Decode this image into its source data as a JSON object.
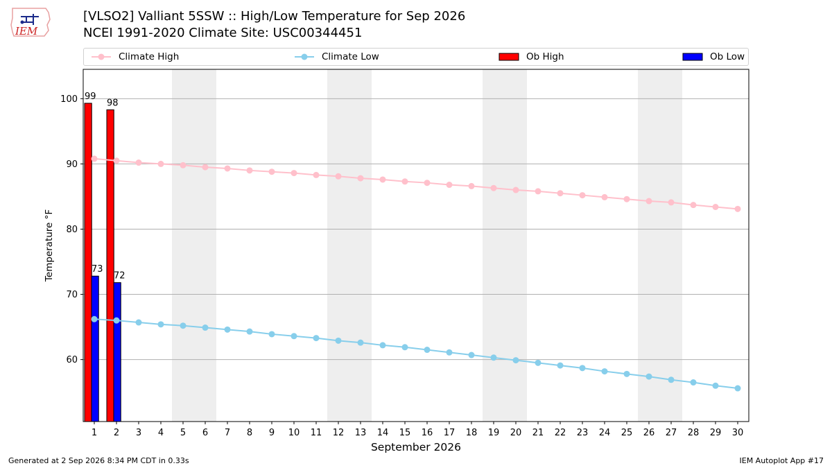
{
  "header": {
    "title_line1": "[VLSO2] Valliant 5SSW :: High/Low Temperature for Sep 2026",
    "title_line2": "NCEI 1991-2020 Climate Site: USC00344451",
    "logo_text": "IEM"
  },
  "legend": {
    "items": [
      {
        "label": "Climate High",
        "kind": "line",
        "color": "#ffc0cb"
      },
      {
        "label": "Climate Low",
        "kind": "line",
        "color": "#87ceeb"
      },
      {
        "label": "Ob High",
        "kind": "bar",
        "color": "#ff0000"
      },
      {
        "label": "Ob Low",
        "kind": "bar",
        "color": "#0000ff"
      }
    ]
  },
  "footer": {
    "left": "Generated at 2 Sep 2026 8:34 PM CDT in 0.33s",
    "right": "IEM Autoplot App #17"
  },
  "chart_data": {
    "type": "bar",
    "xlabel": "September 2026",
    "ylabel": "Temperature °F",
    "xlim": [
      0.5,
      30.5
    ],
    "ylim": [
      50.5,
      104.5
    ],
    "yticks": [
      60,
      70,
      80,
      90,
      100
    ],
    "x": [
      1,
      2,
      3,
      4,
      5,
      6,
      7,
      8,
      9,
      10,
      11,
      12,
      13,
      14,
      15,
      16,
      17,
      18,
      19,
      20,
      21,
      22,
      23,
      24,
      25,
      26,
      27,
      28,
      29,
      30
    ],
    "weekend_shading": [
      [
        5,
        6
      ],
      [
        12,
        13
      ],
      [
        19,
        20
      ],
      [
        26,
        27
      ]
    ],
    "grid": true,
    "legend_position": "top",
    "series": [
      {
        "name": "Climate High",
        "type": "line",
        "color": "#ffc0cb",
        "values": [
          90.8,
          90.5,
          90.2,
          90.0,
          89.8,
          89.5,
          89.3,
          89.0,
          88.8,
          88.6,
          88.3,
          88.1,
          87.8,
          87.6,
          87.3,
          87.1,
          86.8,
          86.6,
          86.3,
          86.0,
          85.8,
          85.5,
          85.2,
          84.9,
          84.6,
          84.3,
          84.1,
          83.7,
          83.4,
          83.1
        ]
      },
      {
        "name": "Climate Low",
        "type": "line",
        "color": "#87ceeb",
        "values": [
          66.2,
          66.0,
          65.7,
          65.4,
          65.2,
          64.9,
          64.6,
          64.3,
          63.9,
          63.6,
          63.3,
          62.9,
          62.6,
          62.2,
          61.9,
          61.5,
          61.1,
          60.7,
          60.3,
          59.9,
          59.5,
          59.1,
          58.7,
          58.2,
          57.8,
          57.4,
          56.9,
          56.5,
          56.0,
          55.6
        ]
      },
      {
        "name": "Ob High",
        "type": "bar",
        "color": "#ff0000",
        "x": [
          1,
          2
        ],
        "values": [
          99.3,
          98.3
        ],
        "labels": [
          "99",
          "98"
        ]
      },
      {
        "name": "Ob Low",
        "type": "bar",
        "color": "#0000ff",
        "x": [
          1,
          2
        ],
        "values": [
          72.8,
          71.8
        ],
        "labels": [
          "73",
          "72"
        ]
      }
    ]
  }
}
